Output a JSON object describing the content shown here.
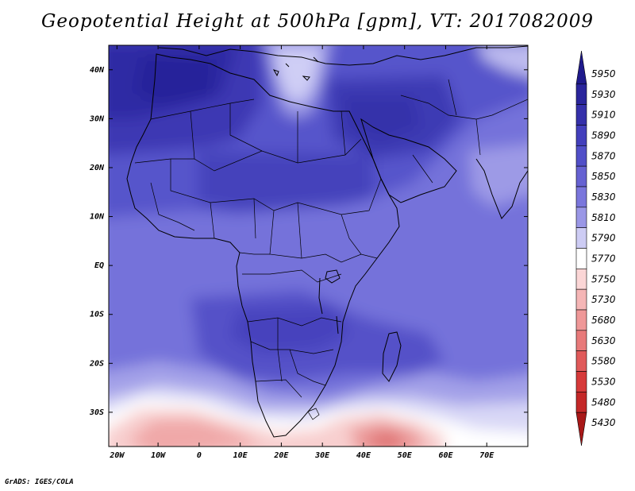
{
  "title": "Geopotential Height at 500hPa [gpm], VT: 2017082009",
  "credit": "GrADS: IGES/COLA",
  "map": {
    "lon_range": [
      -22,
      80
    ],
    "lat_range": [
      -37,
      45
    ],
    "lon_ticks": [
      {
        "value": -20,
        "label": "20W"
      },
      {
        "value": -10,
        "label": "10W"
      },
      {
        "value": 0,
        "label": "0"
      },
      {
        "value": 10,
        "label": "10E"
      },
      {
        "value": 20,
        "label": "20E"
      },
      {
        "value": 30,
        "label": "30E"
      },
      {
        "value": 40,
        "label": "40E"
      },
      {
        "value": 50,
        "label": "50E"
      },
      {
        "value": 60,
        "label": "60E"
      },
      {
        "value": 70,
        "label": "70E"
      }
    ],
    "lat_ticks": [
      {
        "value": 40,
        "label": "40N"
      },
      {
        "value": 30,
        "label": "30N"
      },
      {
        "value": 20,
        "label": "20N"
      },
      {
        "value": 10,
        "label": "10N"
      },
      {
        "value": 0,
        "label": "EQ"
      },
      {
        "value": -10,
        "label": "10S"
      },
      {
        "value": -20,
        "label": "20S"
      },
      {
        "value": -30,
        "label": "30S"
      }
    ]
  },
  "colorbar": {
    "levels": [
      {
        "label": "5950",
        "color": "#1f1a8c"
      },
      {
        "label": "5930",
        "color": "#2a259c"
      },
      {
        "label": "5910",
        "color": "#3530aa"
      },
      {
        "label": "5890",
        "color": "#433fbc"
      },
      {
        "label": "5870",
        "color": "#514fc8"
      },
      {
        "label": "5850",
        "color": "#6662d2"
      },
      {
        "label": "5830",
        "color": "#7a76dc"
      },
      {
        "label": "5810",
        "color": "#9a97e6"
      },
      {
        "label": "5790",
        "color": "#cdccf4"
      },
      {
        "label": "5770",
        "color": "#ffffff"
      },
      {
        "label": "5750",
        "color": "#fbd6d6"
      },
      {
        "label": "5730",
        "color": "#f5b6b6"
      },
      {
        "label": "5680",
        "color": "#ef9898"
      },
      {
        "label": "5630",
        "color": "#e87a7a"
      },
      {
        "label": "5580",
        "color": "#e05a5a"
      },
      {
        "label": "5530",
        "color": "#d63a3a"
      },
      {
        "label": "5480",
        "color": "#c42828"
      },
      {
        "label": "5430",
        "color": "#a81818"
      }
    ]
  }
}
